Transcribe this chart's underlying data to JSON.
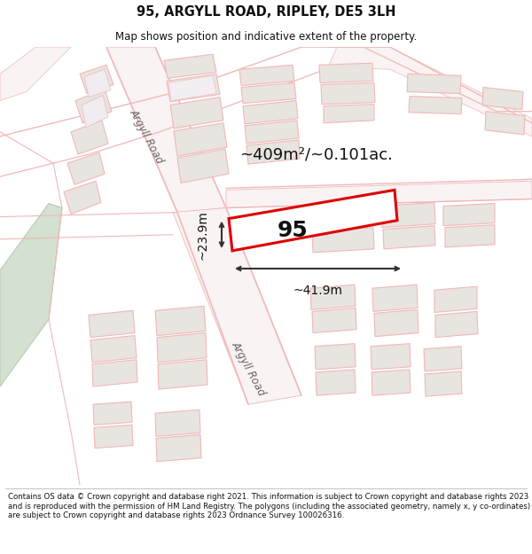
{
  "title": "95, ARGYLL ROAD, RIPLEY, DE5 3LH",
  "subtitle": "Map shows position and indicative extent of the property.",
  "title_fontsize": 10.5,
  "subtitle_fontsize": 8.5,
  "footer_text": "Contains OS data © Crown copyright and database right 2021. This information is subject to Crown copyright and database rights 2023 and is reproduced with the permission of HM Land Registry. The polygons (including the associated geometry, namely x, y co-ordinates) are subject to Crown copyright and database rights 2023 Ordnance Survey 100026316.",
  "footer_fontsize": 6.2,
  "area_text": "~409m²/~0.101ac.",
  "width_text": "~41.9m",
  "height_text": "~23.9m",
  "label_95": "95",
  "road_label_upper": "Argyll Road",
  "road_label_lower": "Argyll Road"
}
